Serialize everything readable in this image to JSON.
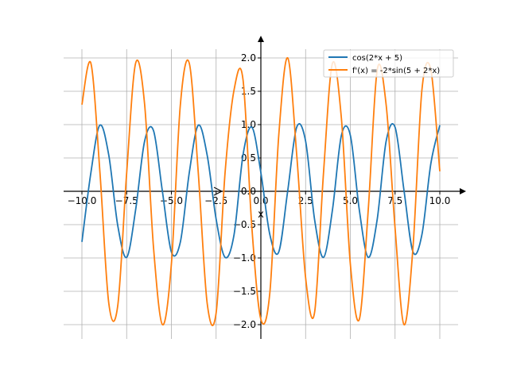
{
  "chart_data": {
    "type": "line",
    "title": "",
    "xlabel": "x",
    "ylabel": "",
    "xlim": [
      -10.0,
      10.0
    ],
    "ylim": [
      -2.0,
      2.0
    ],
    "grid": true,
    "legend_position": "top-right",
    "x_ticks": [
      -10.0,
      -7.5,
      -5.0,
      -2.5,
      0.0,
      2.5,
      5.0,
      7.5,
      10.0
    ],
    "x_tick_labels": [
      "−10.0",
      "−7.5",
      "−5.0",
      "−2.5",
      "0.0",
      "2.5",
      "5.0",
      "7.5",
      "10.0"
    ],
    "y_ticks": [
      2.0,
      1.5,
      1.0,
      0.5,
      0.0,
      -0.5,
      -1.0,
      -1.5,
      -2.0
    ],
    "y_tick_labels": [
      "2.0",
      "1.5",
      "1.0",
      "0.5",
      "0.0",
      "−0.5",
      "−1.0",
      "−1.5",
      "−2.0"
    ],
    "series": [
      {
        "name": "cos(2*x + 5)",
        "color": "#1f77b4",
        "x": [
          -10.0,
          -9.5,
          -9.0,
          -8.5,
          -8.0,
          -7.5,
          -7.0,
          -6.5,
          -6.0,
          -5.5,
          -5.0,
          -4.5,
          -4.0,
          -3.5,
          -3.0,
          -2.5,
          -2.0,
          -1.5,
          -1.0,
          -0.5,
          0.0,
          0.5,
          1.0,
          1.5,
          2.0,
          2.5,
          3.0,
          3.5,
          4.0,
          4.5,
          5.0,
          5.5,
          6.0,
          6.5,
          7.0,
          7.5,
          8.0,
          8.5,
          9.0,
          9.5,
          10.0
        ],
        "y": [
          -0.76,
          0.28,
          0.99,
          0.54,
          -0.51,
          -0.99,
          -0.28,
          0.75,
          0.91,
          -0.01,
          -0.91,
          -0.76,
          0.28,
          0.99,
          0.54,
          -0.42,
          -0.99,
          -0.65,
          0.54,
          0.96,
          0.28,
          -0.65,
          -0.91,
          0.01,
          0.96,
          0.75,
          -0.42,
          -0.99,
          -0.28,
          0.84,
          0.84,
          -0.28,
          -0.99,
          -0.42,
          0.75,
          0.96,
          0.01,
          -0.91,
          -0.65,
          0.42,
          0.99
        ]
      },
      {
        "name": "f'(x) = -2*sin(5 + 2*x)",
        "color": "#ff7f0e",
        "x": [
          -10.0,
          -9.5,
          -9.0,
          -8.5,
          -8.0,
          -7.5,
          -7.0,
          -6.5,
          -6.0,
          -5.5,
          -5.0,
          -4.5,
          -4.0,
          -3.5,
          -3.0,
          -2.5,
          -2.0,
          -1.5,
          -1.0,
          -0.5,
          0.0,
          0.5,
          1.0,
          1.5,
          2.0,
          2.5,
          3.0,
          3.5,
          4.0,
          4.5,
          5.0,
          5.5,
          6.0,
          6.5,
          7.0,
          7.5,
          8.0,
          8.5,
          9.0,
          9.5,
          10.0
        ],
        "y": [
          1.3,
          1.92,
          0.31,
          -1.68,
          -1.72,
          0.28,
          1.92,
          1.31,
          -0.84,
          -2.0,
          -1.09,
          1.3,
          1.92,
          0.28,
          -1.68,
          -1.82,
          0.28,
          1.52,
          1.68,
          -0.56,
          -1.92,
          -1.52,
          0.84,
          2.0,
          0.56,
          -1.3,
          -1.82,
          0.28,
          1.92,
          1.09,
          -1.09,
          -1.92,
          -0.28,
          1.82,
          1.3,
          -0.56,
          -2.0,
          -0.84,
          1.52,
          1.82,
          0.3
        ]
      }
    ]
  }
}
